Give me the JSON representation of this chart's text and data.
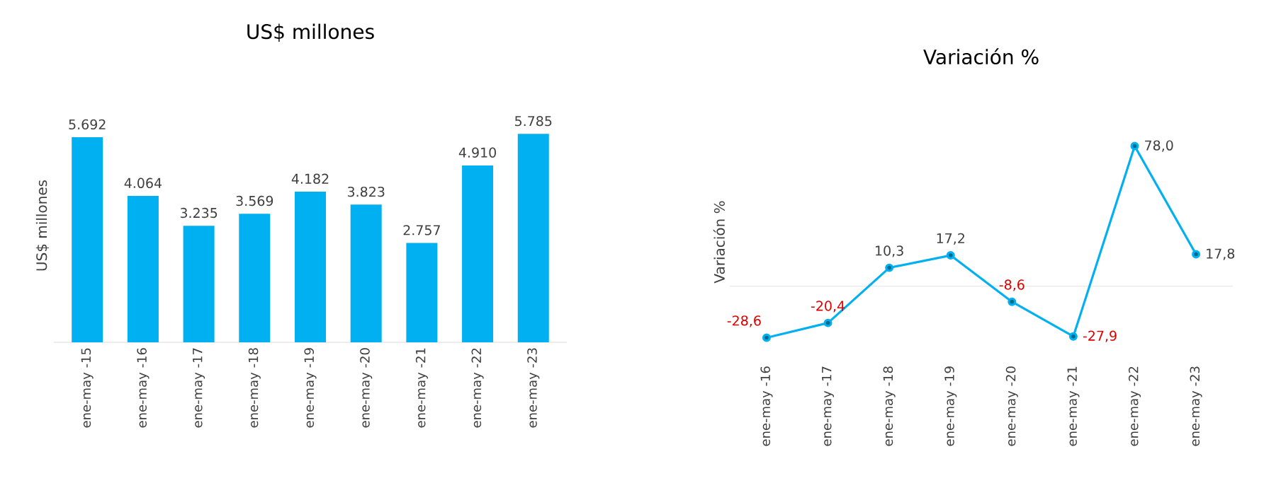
{
  "chart_data": [
    {
      "type": "bar",
      "title": "US$ millones",
      "ylabel": "US$ millones",
      "categories": [
        "ene-may -15",
        "ene-may -16",
        "ene-may -17",
        "ene-may -18",
        "ene-may -19",
        "ene-may -20",
        "ene-may -21",
        "ene-may -22",
        "ene-may -23"
      ],
      "values": [
        5692,
        4064,
        3235,
        3569,
        4182,
        3823,
        2757,
        4910,
        5785
      ],
      "value_labels": [
        "5.692",
        "4.064",
        "3.235",
        "3.569",
        "4.182",
        "3.823",
        "2.757",
        "4.910",
        "5.785"
      ],
      "color": "#00b0f0"
    },
    {
      "type": "line",
      "title": "Variación %",
      "ylabel": "Variación %",
      "categories": [
        "ene-may -16",
        "ene-may -17",
        "ene-may -18",
        "ene-may -19",
        "ene-may -20",
        "ene-may -21",
        "ene-may -22",
        "ene-may -23"
      ],
      "values": [
        -28.6,
        -20.4,
        10.3,
        17.2,
        -8.6,
        -27.9,
        78.0,
        17.8
      ],
      "value_labels": [
        "-28,6",
        "-20,4",
        "10,3",
        "17,2",
        "-8,6",
        "-27,9",
        "78,0",
        "17,8"
      ],
      "color": "#00b0f0",
      "marker": "circle",
      "ref_lines": [
        {
          "axis": "y",
          "value": 0,
          "color": "#d9d9d9"
        }
      ]
    }
  ]
}
